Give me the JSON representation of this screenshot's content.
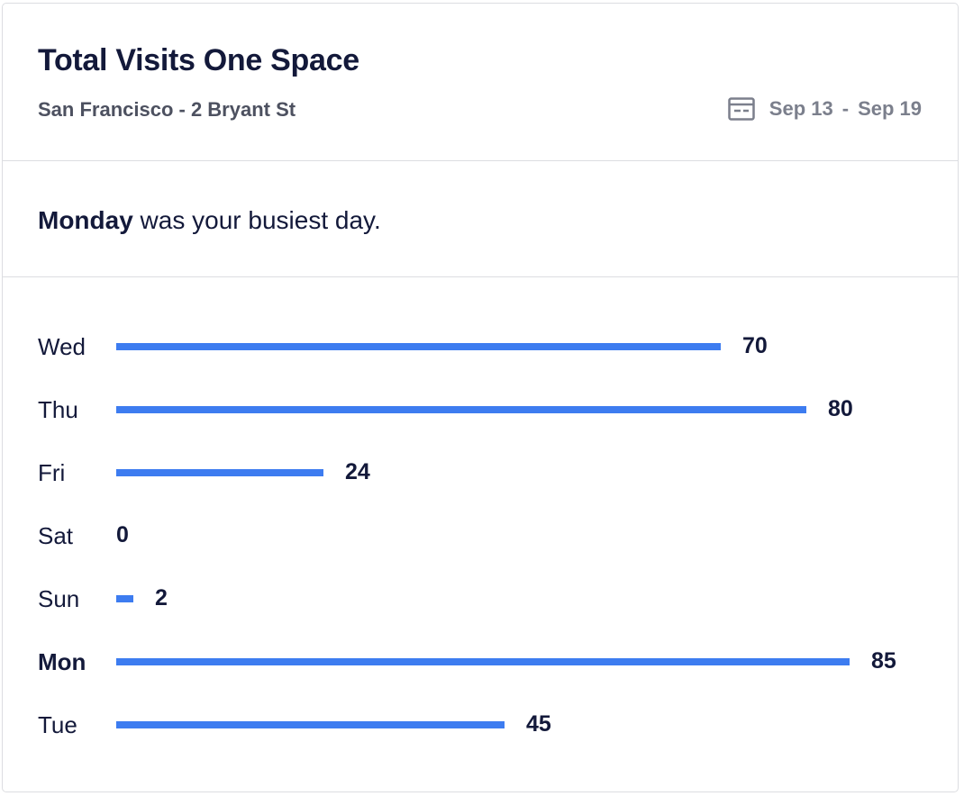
{
  "card": {
    "title": "Total Visits One Space",
    "subtitle": "San Francisco - 2 Bryant St",
    "date_range": {
      "icon": "calendar-icon",
      "start": "Sep 13",
      "separator": "-",
      "end": "Sep 19"
    }
  },
  "summary": {
    "highlight": "Monday",
    "rest": " was your busiest day."
  },
  "colors": {
    "bar": "#3d7cf0",
    "text": "#13193a",
    "muted": "#7b7f8c",
    "divider": "#dcdde1"
  },
  "chart_data": {
    "type": "bar",
    "orientation": "horizontal",
    "categories": [
      "Wed",
      "Thu",
      "Fri",
      "Sat",
      "Sun",
      "Mon",
      "Tue"
    ],
    "values": [
      70,
      80,
      24,
      0,
      2,
      85,
      45
    ],
    "highlighted_category": "Mon",
    "grid": false,
    "data_labels": true
  }
}
